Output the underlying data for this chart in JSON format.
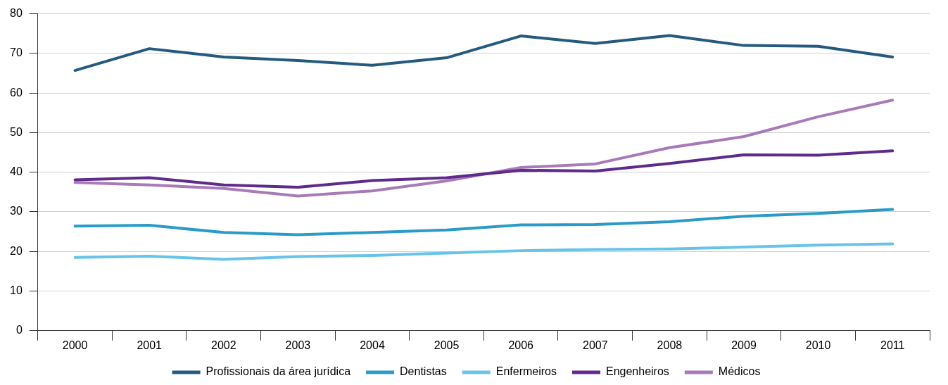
{
  "chart_data": {
    "type": "line",
    "categories": [
      "2000",
      "2001",
      "2002",
      "2003",
      "2004",
      "2005",
      "2006",
      "2007",
      "2008",
      "2009",
      "2010",
      "2011"
    ],
    "series": [
      {
        "name": "Profissionais da área jurídica",
        "color": "#255a80",
        "values": [
          65.7,
          71.2,
          69.1,
          68.2,
          67.0,
          68.9,
          74.4,
          72.5,
          74.5,
          72.0,
          71.8,
          69.1
        ]
      },
      {
        "name": "Dentistas",
        "color": "#2a9bc8",
        "values": [
          26.4,
          26.6,
          24.8,
          24.2,
          24.8,
          25.4,
          26.7,
          26.8,
          27.5,
          28.9,
          29.6,
          30.6
        ]
      },
      {
        "name": "Enfermeiros",
        "color": "#68c3e8",
        "values": [
          18.5,
          18.8,
          18.0,
          18.7,
          19.0,
          19.6,
          20.2,
          20.5,
          20.6,
          21.1,
          21.6,
          21.9
        ]
      },
      {
        "name": "Engenheiros",
        "color": "#5e2a8c",
        "values": [
          38.1,
          38.6,
          36.8,
          36.2,
          37.9,
          38.6,
          40.5,
          40.3,
          42.2,
          44.4,
          44.3,
          45.4
        ]
      },
      {
        "name": "Médicos",
        "color": "#a87ab8",
        "values": [
          37.4,
          36.8,
          35.9,
          34.0,
          35.3,
          37.8,
          41.2,
          42.1,
          46.2,
          49.0,
          54.0,
          58.2
        ]
      }
    ],
    "ylim": [
      0,
      80
    ],
    "yticks": [
      0,
      10,
      20,
      30,
      40,
      50,
      60,
      70,
      80
    ],
    "grid": "y",
    "legend": "bottom",
    "marker": "none",
    "line_style": "solid"
  }
}
